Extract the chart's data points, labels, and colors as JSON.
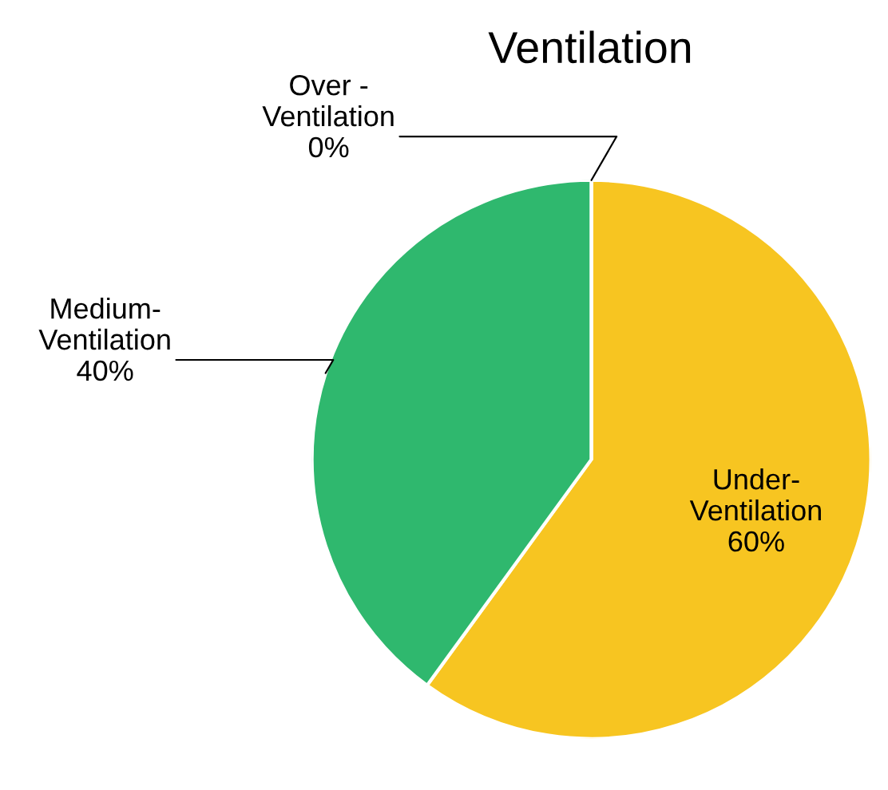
{
  "chart_data": {
    "type": "pie",
    "title": "Ventilation",
    "categories": [
      "Under-Ventilation",
      "Medium-Ventilation",
      "Over -Ventilation"
    ],
    "values": [
      60,
      40,
      0
    ],
    "value_labels": [
      "60%",
      "40%",
      "0%"
    ],
    "colors": [
      "#f7c521",
      "#2fb86e",
      "#9fe6ef"
    ],
    "legend": false
  }
}
